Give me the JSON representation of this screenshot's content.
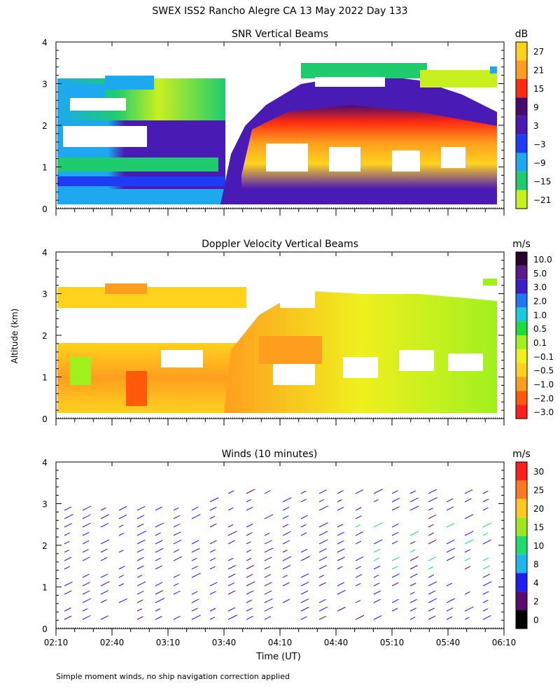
{
  "title": "SWEX ISS2 Rancho Alegre CA  13 May 2022 Day 133",
  "footnote": "Simple moment winds, no ship navigation correction applied",
  "ylabel": "Altitude (km)",
  "xlabel": "Time (UT)",
  "time_ticks": [
    "02:10",
    "02:40",
    "03:10",
    "03:40",
    "04:10",
    "04:40",
    "05:10",
    "05:40",
    "06:10"
  ],
  "chart_data": [
    {
      "type": "heatmap",
      "title": "SNR Vertical Beams",
      "unit": "dB",
      "xlim": [
        "02:10",
        "06:10"
      ],
      "ylim": [
        0,
        4
      ],
      "yticks": [
        "0",
        "1",
        "2",
        "3",
        "4"
      ],
      "colorbar": {
        "labels": [
          "27",
          "21",
          "15",
          "9",
          "3",
          "−3",
          "−9",
          "−15",
          "−21"
        ],
        "colors": [
          "#ffd21e",
          "#ff9e1e",
          "#ff2a10",
          "#4a0b6e",
          "#4a1ab4",
          "#1f3cf5",
          "#1ea8f0",
          "#1ecc6e",
          "#c8f01e"
        ]
      }
    },
    {
      "type": "heatmap",
      "title": "Doppler Velocity Vertical Beams",
      "unit": "m/s",
      "xlim": [
        "02:10",
        "06:10"
      ],
      "ylim": [
        0,
        4
      ],
      "yticks": [
        "0",
        "1",
        "2",
        "3",
        "4"
      ],
      "colorbar": {
        "labels": [
          "10.0",
          "5.0",
          "3.0",
          "2.0",
          "1.0",
          "0.5",
          "0.1",
          "−0.1",
          "−0.5",
          "−1.0",
          "−2.0",
          "−3.0"
        ],
        "colors": [
          "#2a0030",
          "#5a1a8a",
          "#3c1ec8",
          "#1e78f0",
          "#1ec8dc",
          "#1edc3c",
          "#a0f01e",
          "#f0f01e",
          "#ffd21e",
          "#ff9e1e",
          "#ff5a0a",
          "#ff1e1e"
        ]
      }
    },
    {
      "type": "scatter",
      "title": "Winds (10 minutes)",
      "unit": "m/s",
      "xlim": [
        "02:10",
        "06:10"
      ],
      "ylim": [
        0,
        4
      ],
      "yticks": [
        "0",
        "1",
        "2",
        "3",
        "4"
      ],
      "colorbar": {
        "labels": [
          "30",
          "25",
          "20",
          "15",
          "10",
          "8",
          "4",
          "2",
          "0"
        ],
        "colors": [
          "#ff1e1e",
          "#ff7a1e",
          "#ffc81e",
          "#a0e61e",
          "#1edc6e",
          "#1eb4f0",
          "#1e1ef0",
          "#5a0a6e",
          "#000000"
        ]
      }
    }
  ]
}
